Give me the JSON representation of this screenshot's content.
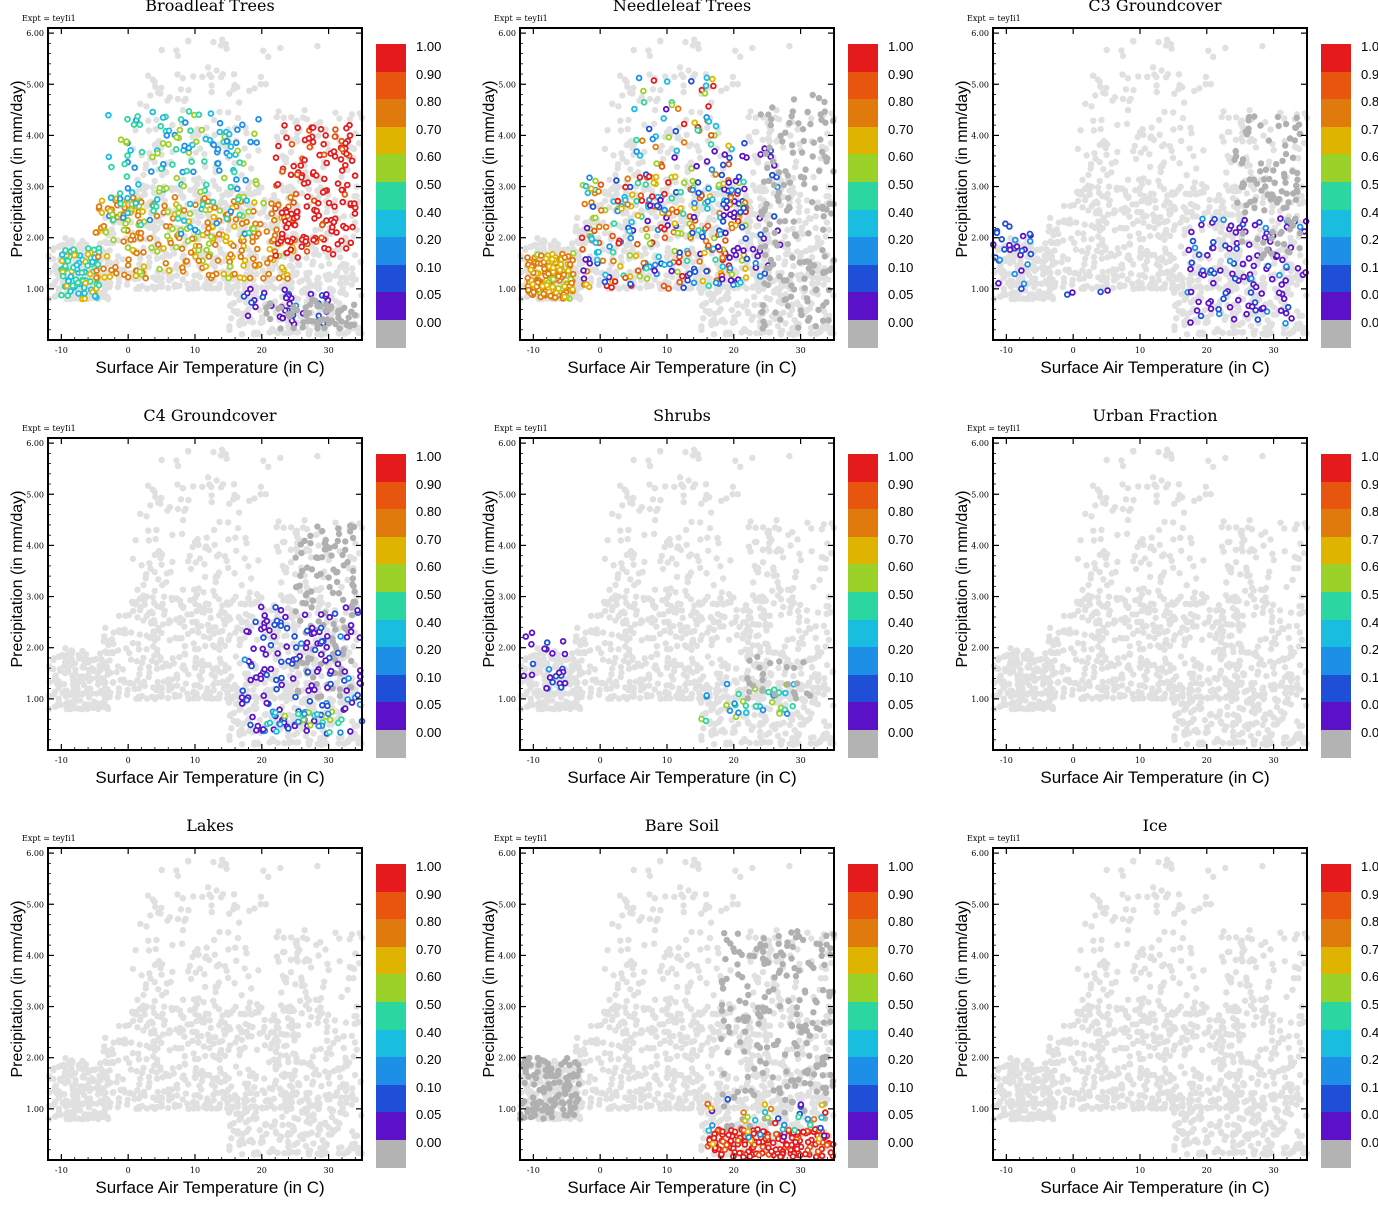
{
  "figure": {
    "expt_label": "Expt = teyIi1",
    "xlabel": "Surface Air Temperature (in C)",
    "ylabel": "Precipitation (in mm/day)",
    "colorbar": {
      "labels": [
        "1.00",
        "0.90",
        "0.80",
        "0.70",
        "0.60",
        "0.50",
        "0.40",
        "0.20",
        "0.10",
        "0.05",
        "0.00"
      ],
      "colors": [
        "#e41a1c",
        "#e8550f",
        "#e07a0c",
        "#dfb400",
        "#9bd22a",
        "#2bd6a0",
        "#19bde0",
        "#1e8fe6",
        "#1f4fd6",
        "#5a11c8",
        "#b3b3b3"
      ]
    },
    "background_color": "#e0e0e0",
    "zero_color": "#b0b0b0"
  },
  "chart_data": [
    {
      "type": "scatter",
      "title": "Broadleaf Trees",
      "xlim": [
        -12,
        35
      ],
      "ylim": [
        0,
        6.1
      ],
      "xticks": [
        "-10",
        "0",
        "10",
        "20",
        "30"
      ],
      "yticks": [
        "1.00",
        "2.00",
        "3.00",
        "4.00",
        "5.00",
        "6.00"
      ],
      "clusters": [
        {
          "x": [
            -10,
            -4
          ],
          "y": [
            0.8,
            1.8
          ],
          "frac": "mid-low",
          "n": 90
        },
        {
          "x": [
            -5,
            25
          ],
          "y": [
            1.2,
            2.8
          ],
          "frac": "mid-high",
          "n": 260
        },
        {
          "x": [
            -3,
            20
          ],
          "y": [
            2.0,
            4.5
          ],
          "frac": "low-mid",
          "n": 160
        },
        {
          "x": [
            22,
            34
          ],
          "y": [
            1.6,
            4.2
          ],
          "frac": "high",
          "n": 150
        },
        {
          "x": [
            17,
            30
          ],
          "y": [
            0.3,
            1.0
          ],
          "frac": "low",
          "n": 40
        },
        {
          "x": [
            20,
            34
          ],
          "y": [
            0.2,
            0.8
          ],
          "frac": "zero",
          "n": 60
        }
      ]
    },
    {
      "type": "scatter",
      "title": "Needleleaf Trees",
      "xlim": [
        -12,
        35
      ],
      "ylim": [
        0,
        6.1
      ],
      "xticks": [
        "-10",
        "0",
        "10",
        "20",
        "30"
      ],
      "yticks": [
        "1.00",
        "2.00",
        "3.00",
        "4.00",
        "5.00",
        "6.00"
      ],
      "clusters": [
        {
          "x": [
            -11,
            -4
          ],
          "y": [
            0.8,
            1.7
          ],
          "frac": "mid-high",
          "n": 150
        },
        {
          "x": [
            -3,
            22
          ],
          "y": [
            1.0,
            3.2
          ],
          "frac": "mixed",
          "n": 280
        },
        {
          "x": [
            5,
            20
          ],
          "y": [
            2.5,
            5.2
          ],
          "frac": "mixed",
          "n": 80
        },
        {
          "x": [
            18,
            27
          ],
          "y": [
            1.0,
            4.0
          ],
          "frac": "low",
          "n": 50
        },
        {
          "x": [
            24,
            35
          ],
          "y": [
            0.2,
            4.8
          ],
          "frac": "zero",
          "n": 150
        }
      ]
    },
    {
      "type": "scatter",
      "title": "C3 Groundcover",
      "xlim": [
        -12,
        35
      ],
      "ylim": [
        0,
        6.1
      ],
      "xticks": [
        "-10",
        "0",
        "10",
        "20",
        "30"
      ],
      "yticks": [
        "1.00",
        "2.00",
        "3.00",
        "4.00",
        "5.00",
        "6.00"
      ],
      "clusters": [
        {
          "x": [
            -12,
            -6
          ],
          "y": [
            0.9,
            2.3
          ],
          "frac": "low",
          "n": 30
        },
        {
          "x": [
            -2,
            6
          ],
          "y": [
            0.8,
            1.2
          ],
          "frac": "low",
          "n": 4
        },
        {
          "x": [
            17,
            35
          ],
          "y": [
            0.3,
            2.4
          ],
          "frac": "low",
          "n": 120
        },
        {
          "x": [
            24,
            34
          ],
          "y": [
            1.5,
            4.4
          ],
          "frac": "zero",
          "n": 100
        }
      ]
    },
    {
      "type": "scatter",
      "title": "C4 Groundcover",
      "xlim": [
        -12,
        35
      ],
      "ylim": [
        0,
        6.1
      ],
      "xticks": [
        "-10",
        "0",
        "10",
        "20",
        "30"
      ],
      "yticks": [
        "1.00",
        "2.00",
        "3.00",
        "4.00",
        "5.00",
        "6.00"
      ],
      "clusters": [
        {
          "x": [
            25,
            34
          ],
          "y": [
            1.0,
            4.4
          ],
          "frac": "zero",
          "n": 120
        },
        {
          "x": [
            17,
            35
          ],
          "y": [
            0.3,
            2.8
          ],
          "frac": "low",
          "n": 150
        },
        {
          "x": [
            20,
            32
          ],
          "y": [
            0.3,
            0.8
          ],
          "frac": "low-mid",
          "n": 30
        }
      ]
    },
    {
      "type": "scatter",
      "title": "Shrubs",
      "xlim": [
        -12,
        35
      ],
      "ylim": [
        0,
        6.1
      ],
      "xticks": [
        "-10",
        "0",
        "10",
        "20",
        "30"
      ],
      "yticks": [
        "1.00",
        "2.00",
        "3.00",
        "4.00",
        "5.00",
        "6.00"
      ],
      "clusters": [
        {
          "x": [
            -12,
            -5
          ],
          "y": [
            1.2,
            2.3
          ],
          "frac": "low",
          "n": 25
        },
        {
          "x": [
            15,
            29
          ],
          "y": [
            0.5,
            1.3
          ],
          "frac": "low-mid",
          "n": 35
        },
        {
          "x": [
            22,
            33
          ],
          "y": [
            1.0,
            1.9
          ],
          "frac": "zero",
          "n": 25
        }
      ]
    },
    {
      "type": "scatter",
      "title": "Urban Fraction",
      "xlim": [
        -12,
        35
      ],
      "ylim": [
        0,
        6.1
      ],
      "xticks": [
        "-10",
        "0",
        "10",
        "20",
        "30"
      ],
      "yticks": [
        "1.00",
        "2.00",
        "3.00",
        "4.00",
        "5.00",
        "6.00"
      ],
      "clusters": []
    },
    {
      "type": "scatter",
      "title": "Lakes",
      "xlim": [
        -12,
        35
      ],
      "ylim": [
        0,
        6.1
      ],
      "xticks": [
        "-10",
        "0",
        "10",
        "20",
        "30"
      ],
      "yticks": [
        "1.00",
        "2.00",
        "3.00",
        "4.00",
        "5.00",
        "6.00"
      ],
      "clusters": []
    },
    {
      "type": "scatter",
      "title": "Bare Soil",
      "xlim": [
        -12,
        35
      ],
      "ylim": [
        0,
        6.1
      ],
      "xticks": [
        "-10",
        "0",
        "10",
        "20",
        "30"
      ],
      "yticks": [
        "1.00",
        "2.00",
        "3.00",
        "4.00",
        "5.00",
        "6.00"
      ],
      "clusters": [
        {
          "x": [
            -12,
            -3
          ],
          "y": [
            0.8,
            2.0
          ],
          "frac": "zero",
          "n": 120
        },
        {
          "x": [
            18,
            35
          ],
          "y": [
            0.6,
            4.5
          ],
          "frac": "zero",
          "n": 200
        },
        {
          "x": [
            16,
            35
          ],
          "y": [
            0.05,
            0.6
          ],
          "frac": "high",
          "n": 180
        },
        {
          "x": [
            16,
            34
          ],
          "y": [
            0.3,
            1.2
          ],
          "frac": "mixed",
          "n": 40
        }
      ]
    },
    {
      "type": "scatter",
      "title": "Ice",
      "xlim": [
        -12,
        35
      ],
      "ylim": [
        0,
        6.1
      ],
      "xticks": [
        "-10",
        "0",
        "10",
        "20",
        "30"
      ],
      "yticks": [
        "1.00",
        "2.00",
        "3.00",
        "4.00",
        "5.00",
        "6.00"
      ],
      "clusters": []
    }
  ]
}
